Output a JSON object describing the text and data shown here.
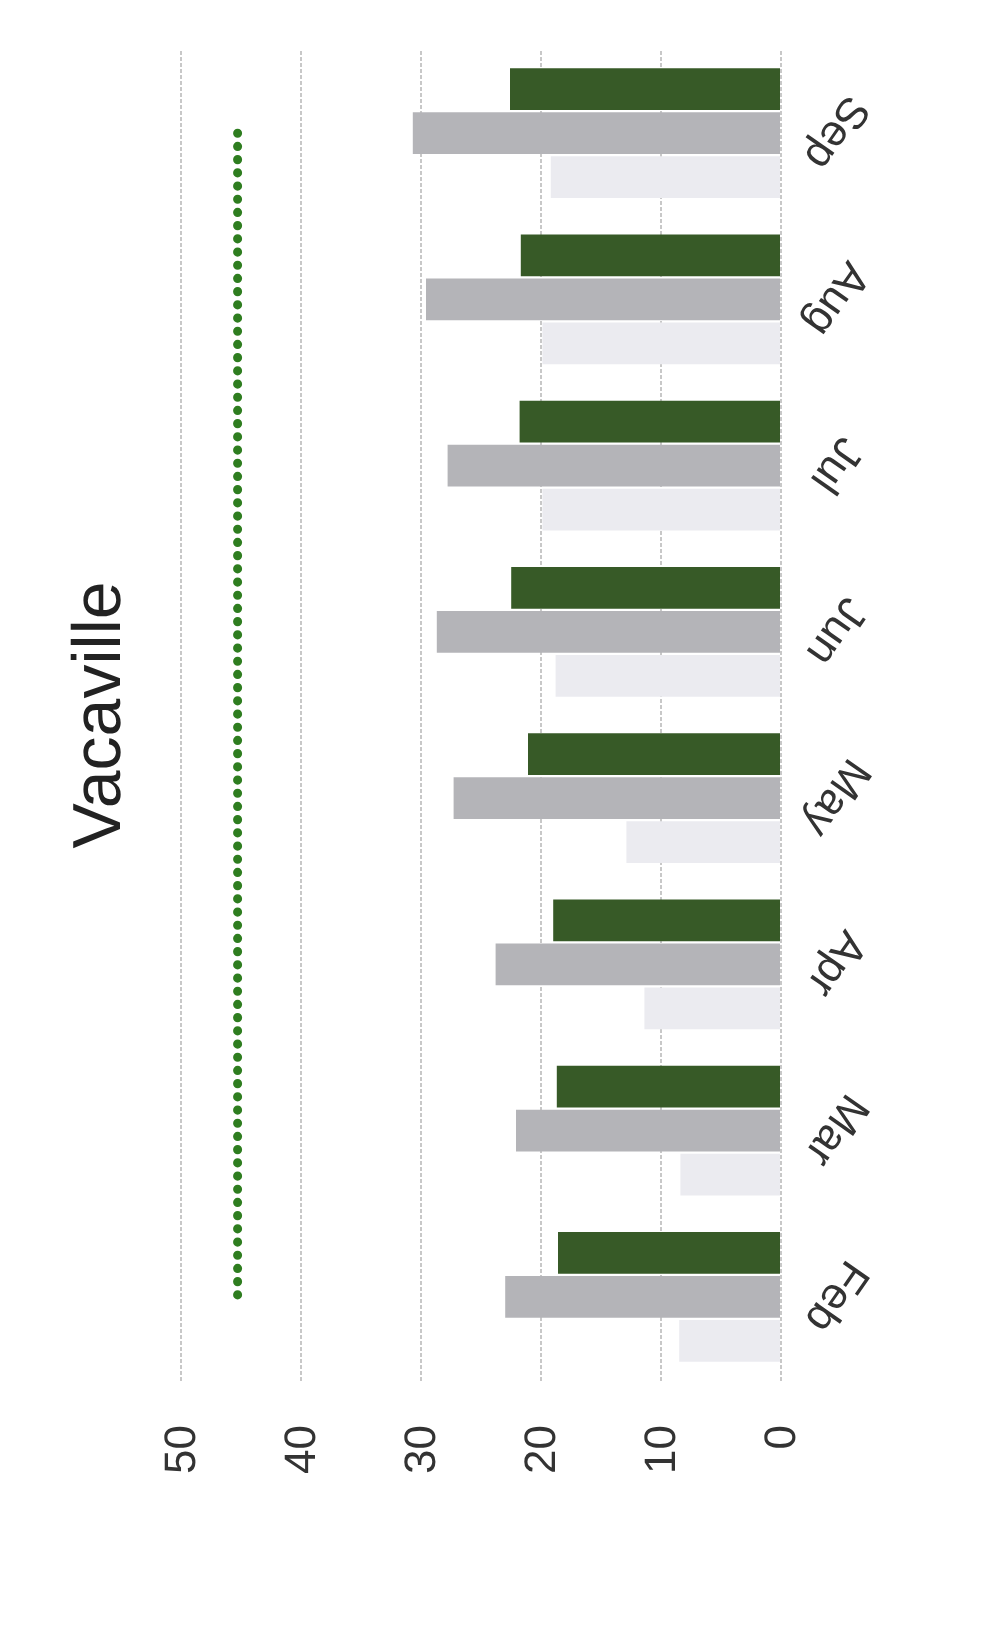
{
  "chart_data": {
    "type": "bar",
    "title": "Vacaville",
    "orientation": "horizontal",
    "categories": [
      "Sep",
      "Aug",
      "Jul",
      "Jun",
      "May",
      "Apr",
      "Mar",
      "Feb"
    ],
    "series": [
      {
        "color": "#375a27",
        "values": [
          22.5,
          21.6,
          21.7,
          22.4,
          21.0,
          18.9,
          18.6,
          18.5
        ]
      },
      {
        "color": "#b4b4b8",
        "values": [
          30.6,
          29.5,
          27.7,
          28.6,
          27.2,
          23.7,
          22.0,
          22.9
        ]
      },
      {
        "color": "#ebebf0",
        "values": [
          19.1,
          19.8,
          19.8,
          18.7,
          12.8,
          11.3,
          8.3,
          8.4
        ]
      },
      {
        "type": "line",
        "color": "#2e7d1f",
        "line_style": "dotted",
        "values": [
          45.2,
          45.2,
          45.2,
          45.2,
          45.2,
          45.2,
          45.2,
          45.2
        ]
      }
    ],
    "xlim": [
      50,
      0
    ],
    "xticks": [
      50,
      40,
      30,
      20,
      10,
      0
    ],
    "grid": "x",
    "legend": false
  }
}
